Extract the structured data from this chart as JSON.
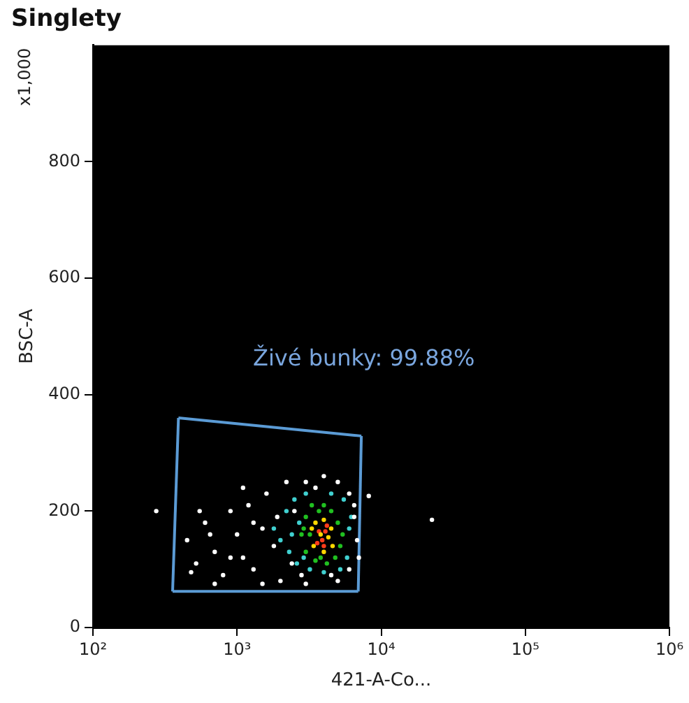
{
  "chart_data": {
    "type": "scatter",
    "title": "Singlety",
    "xlabel": "421-A-Co...",
    "ylabel": "BSC-A",
    "log": "x",
    "grid": false,
    "legend": false,
    "marker": "circle",
    "xlim": [
      100,
      1000000
    ],
    "xticks": [
      {
        "value": 100,
        "label": "10²"
      },
      {
        "value": 1000,
        "label": "10³"
      },
      {
        "value": 10000,
        "label": "10⁴"
      },
      {
        "value": 100000,
        "label": "10⁵"
      },
      {
        "value": 1000000,
        "label": "10⁶"
      }
    ],
    "ylim": [
      0,
      1000
    ],
    "yticks": [
      0,
      200,
      400,
      600,
      800
    ],
    "annotations": [
      "x1,000",
      "Živé bunky: 99.88%"
    ],
    "series": [
      {
        "color": "#ffffff",
        "x": [
          450,
          520,
          600,
          700,
          800,
          900,
          1000,
          1100,
          1200,
          1300,
          1500,
          1600,
          1800,
          2000,
          2200,
          2500,
          3000,
          3500,
          4000,
          5000,
          6000,
          6500,
          6800,
          6000,
          5000,
          3000,
          1500,
          700,
          550,
          480,
          1900,
          2400,
          900,
          1100,
          650,
          7000,
          2800,
          1300,
          4500,
          6500,
          275,
          8200,
          22500
        ],
        "values": [
          150,
          110,
          180,
          130,
          90,
          200,
          160,
          120,
          210,
          100,
          170,
          230,
          140,
          80,
          250,
          200,
          250,
          240,
          260,
          250,
          230,
          190,
          150,
          100,
          80,
          75,
          75,
          75,
          200,
          95,
          190,
          110,
          120,
          240,
          160,
          120,
          90,
          180,
          90,
          210,
          200,
          226,
          185
        ]
      },
      {
        "color": "#40d0d0",
        "x": [
          1800,
          2000,
          2200,
          2300,
          2500,
          2600,
          2700,
          3000,
          3200,
          5500,
          6000,
          5800,
          4500,
          4000,
          2400,
          2900,
          5200,
          6200
        ],
        "values": [
          170,
          150,
          200,
          130,
          220,
          110,
          180,
          230,
          100,
          220,
          170,
          120,
          230,
          95,
          160,
          120,
          100,
          190
        ]
      },
      {
        "color": "#20c020",
        "x": [
          2800,
          3000,
          3000,
          3300,
          3500,
          4000,
          4500,
          5000,
          5200,
          4800,
          3800,
          3200,
          4200,
          5400,
          2900,
          3700
        ],
        "values": [
          160,
          190,
          130,
          210,
          115,
          210,
          200,
          180,
          140,
          120,
          120,
          160,
          110,
          160,
          170,
          200
        ]
      },
      {
        "color": "#ffd700",
        "x": [
          3300,
          3500,
          4000,
          4500,
          4600,
          4000,
          3400,
          3800,
          4300
        ],
        "values": [
          170,
          180,
          185,
          170,
          140,
          130,
          140,
          160,
          155
        ]
      },
      {
        "color": "#ff3b1a",
        "x": [
          3700,
          3900,
          4100,
          3600,
          4000,
          4200
        ],
        "values": [
          165,
          150,
          165,
          145,
          140,
          175
        ]
      },
      {
        "type": "line",
        "color": "#5b9bd5",
        "marker": "none",
        "line_style": "solid",
        "x": [
          392,
          7280
        ],
        "values": [
          360,
          329
        ]
      },
      {
        "type": "line",
        "color": "#5b9bd5",
        "marker": "none",
        "line_style": "solid",
        "x": [
          6930,
          7280
        ],
        "values": [
          62,
          329
        ]
      },
      {
        "type": "line",
        "color": "#5b9bd5",
        "marker": "none",
        "line_style": "solid",
        "x": [
          357,
          6930
        ],
        "values": [
          62,
          62
        ]
      },
      {
        "type": "line",
        "color": "#5b9bd5",
        "marker": "none",
        "line_style": "solid",
        "x": [
          357,
          392
        ],
        "values": [
          62,
          360
        ]
      }
    ]
  }
}
